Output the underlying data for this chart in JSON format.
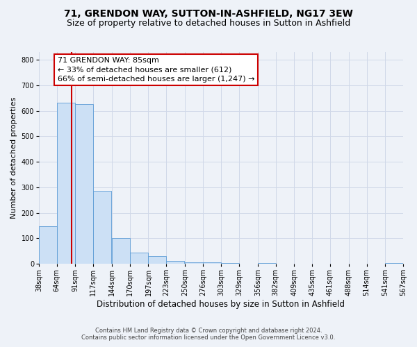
{
  "title": "71, GRENDON WAY, SUTTON-IN-ASHFIELD, NG17 3EW",
  "subtitle": "Size of property relative to detached houses in Sutton in Ashfield",
  "xlabel": "Distribution of detached houses by size in Sutton in Ashfield",
  "ylabel": "Number of detached properties",
  "bin_labels": [
    "38sqm",
    "64sqm",
    "91sqm",
    "117sqm",
    "144sqm",
    "170sqm",
    "197sqm",
    "223sqm",
    "250sqm",
    "276sqm",
    "303sqm",
    "329sqm",
    "356sqm",
    "382sqm",
    "409sqm",
    "435sqm",
    "461sqm",
    "488sqm",
    "514sqm",
    "541sqm",
    "567sqm"
  ],
  "bin_edges": [
    38,
    64,
    91,
    117,
    144,
    170,
    197,
    223,
    250,
    276,
    303,
    329,
    356,
    382,
    409,
    435,
    461,
    488,
    514,
    541,
    567
  ],
  "bar_heights": [
    148,
    632,
    627,
    287,
    101,
    44,
    30,
    10,
    5,
    5,
    3,
    0,
    3,
    0,
    0,
    0,
    0,
    0,
    0,
    4,
    0
  ],
  "bar_color": "#cce0f5",
  "bar_edge_color": "#5b9bd5",
  "property_value": 85,
  "vline_color": "#cc0000",
  "annotation_line1": "71 GRENDON WAY: 85sqm",
  "annotation_line2": "← 33% of detached houses are smaller (612)",
  "annotation_line3": "66% of semi-detached houses are larger (1,247) →",
  "annotation_box_edge_color": "#cc0000",
  "annotation_box_face_color": "white",
  "ylim": [
    0,
    830
  ],
  "yticks": [
    0,
    100,
    200,
    300,
    400,
    500,
    600,
    700,
    800
  ],
  "grid_color": "#d0d8e8",
  "background_color": "#eef2f8",
  "footer_line1": "Contains HM Land Registry data © Crown copyright and database right 2024.",
  "footer_line2": "Contains public sector information licensed under the Open Government Licence v3.0.",
  "title_fontsize": 10,
  "subtitle_fontsize": 9,
  "xlabel_fontsize": 8.5,
  "ylabel_fontsize": 8,
  "annotation_fontsize": 8,
  "footer_fontsize": 6,
  "tick_fontsize": 7
}
